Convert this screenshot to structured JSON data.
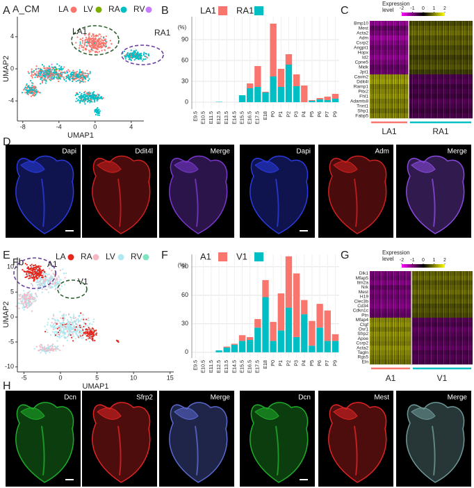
{
  "panel_labels": [
    "A",
    "B",
    "C",
    "D",
    "E",
    "F",
    "G",
    "H"
  ],
  "chart_data": [
    {
      "type": "scatter",
      "title": "A_CM",
      "xlabel": "UMAP1",
      "ylabel": "UMAP2",
      "series": [
        {
          "name": "LA",
          "color": "#f8766d"
        },
        {
          "name": "LV",
          "color": "#7cae00"
        },
        {
          "name": "RA",
          "color": "#00bfc4"
        },
        {
          "name": "RV",
          "color": "#c77cff"
        }
      ],
      "annotations": [
        "LA1",
        "RA1"
      ],
      "xlim": [
        -8.6,
        5.4
      ],
      "ylim": [
        -6.5,
        6.5
      ],
      "xticks": [
        -8,
        -4,
        0,
        4
      ],
      "yticks": [
        -4,
        0,
        4
      ]
    },
    {
      "type": "bar",
      "ylabel": "(%)",
      "categories": [
        "E9.5",
        "E10.5",
        "E11.5",
        "E12.5",
        "E13.5",
        "E14.5",
        "E15.5",
        "E16.5",
        "E17.5",
        "E18",
        "P0",
        "P1",
        "P2",
        "P3",
        "P4",
        "P5",
        "P6",
        "P7",
        "P9"
      ],
      "series": [
        {
          "name": "LA1",
          "color": "#f8766d",
          "values": [
            0,
            0,
            0,
            0,
            0,
            0,
            0,
            7,
            30,
            1,
            76,
            26,
            15,
            17,
            24,
            1,
            2,
            5,
            7
          ]
        },
        {
          "name": "RA1",
          "color": "#00bfc4",
          "values": [
            0,
            0,
            0,
            0.5,
            0,
            0,
            10,
            20,
            22,
            14,
            37,
            22,
            54,
            23,
            0,
            2,
            4,
            3,
            5
          ]
        }
      ],
      "ylim": [
        -10,
        123
      ],
      "yticks": [
        0,
        30,
        60,
        90
      ],
      "grid": true
    },
    {
      "type": "heatmap",
      "legend_title": [
        "Expression",
        "level"
      ],
      "colorbar_lim": [
        -2,
        2
      ],
      "colorbar_ticks": [
        -2,
        -1,
        0,
        1,
        2
      ],
      "rows": [
        "Bmp10",
        "Mest",
        "Acta2",
        "Adm",
        "Csrp2",
        "Angpt1",
        "Hopx",
        "Id2",
        "Cpne5",
        "Midk",
        "Jpt1",
        "Cavin2",
        "Ddit4l",
        "Ramp1",
        "Pitx2",
        "Fhl1",
        "Adamts8",
        "Tnnt1",
        "Sfrp1",
        "Fabp5"
      ],
      "groups": [
        {
          "name": "LA1",
          "color": "#f8766d"
        },
        {
          "name": "RA1",
          "color": "#00bfc4"
        }
      ],
      "values": [
        [
          -1.2,
          0.6
        ],
        [
          -0.8,
          0.8
        ],
        [
          -1.0,
          0.9
        ],
        [
          -1.3,
          0.7
        ],
        [
          -1.1,
          0.8
        ],
        [
          -0.9,
          0.6
        ],
        [
          -1.0,
          0.7
        ],
        [
          -1.2,
          0.5
        ],
        [
          -1.0,
          0.6
        ],
        [
          -0.8,
          0.7
        ],
        [
          -0.9,
          0.5
        ],
        [
          1.2,
          -0.6
        ],
        [
          1.3,
          -0.7
        ],
        [
          1.0,
          -0.5
        ],
        [
          1.1,
          -0.6
        ],
        [
          1.2,
          -0.5
        ],
        [
          1.0,
          -0.7
        ],
        [
          1.1,
          -0.6
        ],
        [
          0.9,
          -0.5
        ],
        [
          1.1,
          -0.6
        ]
      ]
    },
    {
      "type": "scatter",
      "title": "Fb",
      "xlabel": "UMAP1",
      "ylabel": "UMAP2",
      "series": [
        {
          "name": "LA",
          "color": "#e4261c"
        },
        {
          "name": "RA",
          "color": "#f4b8c4"
        },
        {
          "name": "LV",
          "color": "#aee8f0"
        },
        {
          "name": "RV",
          "color": "#7fe3c4"
        }
      ],
      "annotations": [
        "A1",
        "V1"
      ],
      "xlim": [
        -5.9,
        15.5
      ],
      "ylim": [
        -11,
        12
      ],
      "xticks": [
        -5,
        0,
        5,
        10,
        15
      ],
      "yticks": [
        -10,
        -5,
        0,
        5,
        10
      ]
    },
    {
      "type": "bar",
      "ylabel": "(%)",
      "categories": [
        "E9.5",
        "E10.5",
        "E11.5",
        "E12.5",
        "E13.5",
        "E14.5",
        "E15.5",
        "E16.5",
        "E17.5",
        "E18",
        "P0",
        "P1",
        "P2",
        "P3",
        "P4",
        "P5",
        "P6",
        "P7",
        "P9"
      ],
      "series": [
        {
          "name": "A1",
          "color": "#f8766d",
          "values": [
            0,
            0,
            0,
            0,
            1,
            1,
            6,
            3,
            9,
            18,
            20,
            39,
            54,
            67,
            15,
            26,
            25,
            32,
            7
          ]
        },
        {
          "name": "V1",
          "color": "#00bfc4",
          "values": [
            0,
            0,
            0,
            2,
            5,
            8,
            12,
            13,
            26,
            58,
            12,
            23,
            47,
            16,
            40,
            7,
            26,
            12,
            12
          ]
        }
      ],
      "ylim": [
        -6,
        103
      ],
      "yticks": [
        0,
        30,
        60,
        90
      ],
      "grid": true
    },
    {
      "type": "heatmap",
      "legend_title": [
        "Expression",
        "level"
      ],
      "colorbar_lim": [
        -2,
        2
      ],
      "colorbar_ticks": [
        -2,
        -1,
        0,
        1,
        2
      ],
      "rows": [
        "Dlk1",
        "Mfap5",
        "Itm2a",
        "Nrk",
        "Mest",
        "H19",
        "Clec3b",
        "Cd34",
        "Cdkn1c",
        "Ptn",
        "Mfap4",
        "Ctgf",
        "Osr1",
        "Sfrp2",
        "Apoe",
        "Csrp2",
        "Acta2",
        "Tagln",
        "Rgs5",
        "Eln"
      ],
      "groups": [
        {
          "name": "A1",
          "color": "#f8766d"
        },
        {
          "name": "V1",
          "color": "#00bfc4"
        }
      ],
      "values": [
        [
          -1.0,
          0.8
        ],
        [
          -0.9,
          0.9
        ],
        [
          -1.1,
          0.7
        ],
        [
          -0.8,
          0.8
        ],
        [
          -1.0,
          0.9
        ],
        [
          -0.9,
          0.7
        ],
        [
          -1.0,
          0.8
        ],
        [
          -1.1,
          0.6
        ],
        [
          -0.9,
          0.7
        ],
        [
          -0.8,
          0.6
        ],
        [
          1.1,
          -0.7
        ],
        [
          1.2,
          -0.6
        ],
        [
          1.0,
          -0.8
        ],
        [
          1.2,
          -0.7
        ],
        [
          1.1,
          -0.6
        ],
        [
          1.0,
          -0.7
        ],
        [
          1.2,
          -0.8
        ],
        [
          1.1,
          -0.6
        ],
        [
          1.0,
          -0.7
        ],
        [
          0.9,
          -0.6
        ]
      ]
    }
  ],
  "micrographs": {
    "D": [
      "Dapi",
      "Ddit4l",
      "Merge",
      "Dapi",
      "Adm",
      "Merge"
    ],
    "H": [
      "Dcn",
      "Sfrp2",
      "Merge",
      "Dcn",
      "Mest",
      "Merge"
    ]
  }
}
